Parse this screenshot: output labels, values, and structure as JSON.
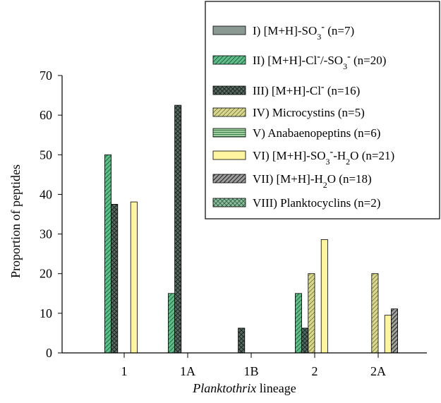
{
  "chart_data": {
    "type": "bar",
    "xlabel": "Planktothrix lineage",
    "xlabel_italic_part": "Planktothrix",
    "xlabel_rest": " lineage",
    "ylabel": "Proportion of peptides",
    "ylim": [
      0,
      70
    ],
    "yticks": [
      0,
      10,
      20,
      30,
      40,
      50,
      60,
      70
    ],
    "categories": [
      "1",
      "1A",
      "1B",
      "2",
      "2A"
    ],
    "grid": false,
    "legend_position": "top-right",
    "series": [
      {
        "name": "I) [M+H]-SO3- (n=7)",
        "legend": [
          "I) [M+H]-SO",
          "3",
          "-",
          " (n=7)"
        ],
        "color": "#8a9a92",
        "pattern": "solid",
        "values": [
          0,
          0,
          0,
          0,
          0
        ]
      },
      {
        "name": "II) [M+H]-Cl-/-SO3- (n=20)",
        "legend": [
          "II) [M+H]-Cl",
          "-",
          "/-SO",
          "3",
          "-",
          " (n=20)"
        ],
        "color": "#5fbf8a",
        "pattern": "diag",
        "values": [
          50,
          15,
          0,
          15,
          0
        ]
      },
      {
        "name": "III) [M+H]-Cl- (n=16)",
        "legend": [
          "III) [M+H]-Cl",
          "-",
          " (n=16)"
        ],
        "color": "#5a6a62",
        "pattern": "crosshatch-dark",
        "values": [
          37.5,
          62.5,
          6.25,
          6.25,
          0
        ]
      },
      {
        "name": "IV) Microcystins (n=5)",
        "legend": [
          "IV) Microcystins (n=5)"
        ],
        "color": "#d8d890",
        "pattern": "diag-fine",
        "values": [
          0,
          0,
          0,
          20,
          20
        ]
      },
      {
        "name": "V) Anabaenopeptins (n=6)",
        "legend": [
          "V) Anabaenopeptins (n=6)"
        ],
        "color": "#9fcf9f",
        "pattern": "horizontal",
        "values": [
          0,
          0,
          0,
          0,
          0
        ]
      },
      {
        "name": "VI) [M+H]-SO3--H2O (n=21)",
        "legend": [
          "VI) [M+H]-SO",
          "3",
          "-",
          "-H",
          "2",
          "O (n=21)"
        ],
        "color": "#fff4a0",
        "pattern": "solid",
        "values": [
          38.1,
          0,
          0,
          28.6,
          9.5
        ]
      },
      {
        "name": "VII) [M+H]-H2O (n=18)",
        "legend": [
          "VII) [M+H]-H",
          "2",
          "O (n=18)"
        ],
        "color": "#a0a0a0",
        "pattern": "diag-dark",
        "values": [
          0,
          0,
          0,
          0,
          11.1
        ]
      },
      {
        "name": "VIII) Planktocyclins (n=2)",
        "legend": [
          "VIII) Planktocyclins (n=2)"
        ],
        "color": "#8fbf9f",
        "pattern": "crosshatch",
        "values": [
          0,
          0,
          0,
          0,
          0
        ]
      }
    ]
  }
}
